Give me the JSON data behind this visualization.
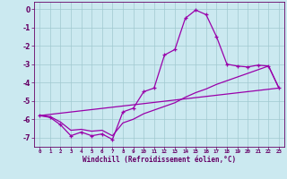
{
  "bg_color": "#cbe9f0",
  "line_color": "#9900aa",
  "grid_color": "#a0c8d0",
  "xlabel": "Windchill (Refroidissement éolien,°C)",
  "xlim": [
    -0.5,
    23.5
  ],
  "ylim": [
    -7.5,
    0.4
  ],
  "yticks": [
    0,
    -1,
    -2,
    -3,
    -4,
    -5,
    -6,
    -7
  ],
  "xticks": [
    0,
    1,
    2,
    3,
    4,
    5,
    6,
    7,
    8,
    9,
    10,
    11,
    12,
    13,
    14,
    15,
    16,
    17,
    18,
    19,
    20,
    21,
    22,
    23
  ],
  "curve1_x": [
    0,
    1,
    2,
    3,
    4,
    5,
    6,
    7,
    8,
    9,
    10,
    11,
    12,
    13,
    14,
    15,
    16,
    17,
    18,
    19,
    20,
    21,
    22,
    23
  ],
  "curve1_y": [
    -5.8,
    -5.9,
    -6.3,
    -6.9,
    -6.7,
    -6.9,
    -6.8,
    -7.1,
    -5.6,
    -5.4,
    -4.5,
    -4.3,
    -2.5,
    -2.2,
    -0.5,
    -0.05,
    -0.3,
    -1.5,
    -3.0,
    -3.1,
    -3.15,
    -3.05,
    -3.1,
    -4.3
  ],
  "curve2_x": [
    0,
    1,
    2,
    3,
    4,
    5,
    6,
    7,
    8,
    9,
    10,
    11,
    12,
    13,
    14,
    15,
    16,
    17,
    18,
    19,
    20,
    21,
    22,
    23
  ],
  "curve2_y": [
    -5.8,
    -5.85,
    -6.15,
    -6.6,
    -6.55,
    -6.65,
    -6.6,
    -6.9,
    -6.2,
    -6.0,
    -5.7,
    -5.5,
    -5.3,
    -5.1,
    -4.8,
    -4.55,
    -4.35,
    -4.1,
    -3.9,
    -3.7,
    -3.5,
    -3.3,
    -3.1,
    -4.3
  ],
  "curve3_x": [
    0,
    23
  ],
  "curve3_y": [
    -5.8,
    -4.3
  ]
}
